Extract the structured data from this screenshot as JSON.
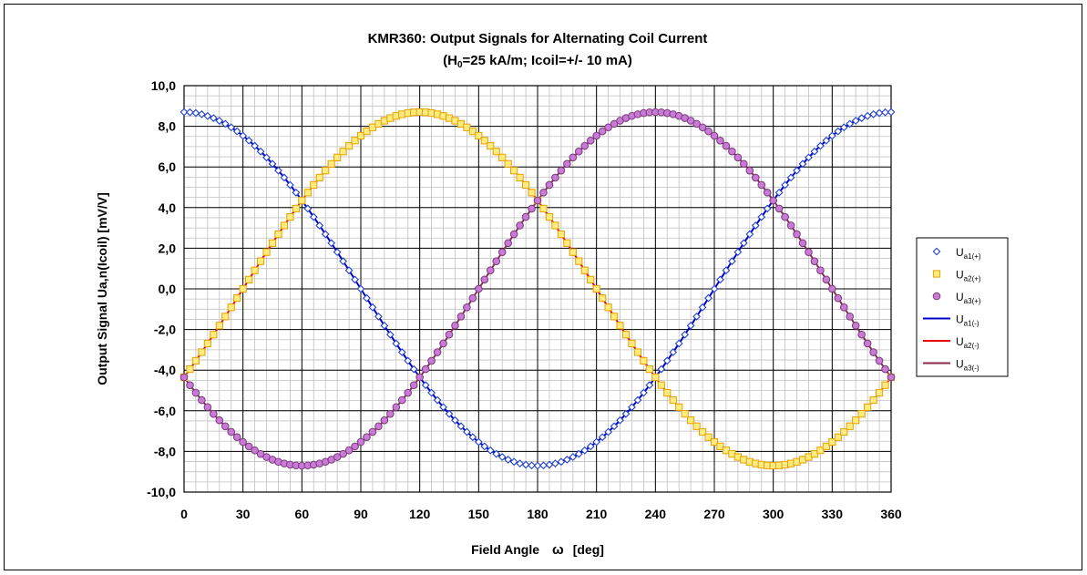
{
  "chart_data": {
    "type": "scatter",
    "title_line1": "KMR360: Output Signals for Alternating Coil Current",
    "title_line2_parts": [
      "(H",
      "0",
      "=25 kA/m; Icoil=+/- 10 mA)"
    ],
    "xlabel_parts": [
      "Field Angle",
      "ω",
      "[deg]"
    ],
    "ylabel": "Output Signal Ua,n(Icoil)  [mV/V]",
    "xlim": [
      0,
      360
    ],
    "ylim": [
      -10,
      10
    ],
    "x_ticks": [
      "0",
      "30",
      "60",
      "90",
      "120",
      "150",
      "180",
      "210",
      "240",
      "270",
      "300",
      "330",
      "360"
    ],
    "y_ticks": [
      "10,0",
      "8,0",
      "6,0",
      "4,0",
      "2,0",
      "0,0",
      "-2,0",
      "-4,0",
      "-6,0",
      "-8,0",
      "-10,0"
    ],
    "major_grid": true,
    "minor_grid": true,
    "legend_position": "right",
    "amplitude": 8.7,
    "x_step": 3,
    "series": [
      {
        "main": "U",
        "sub": "a1(+)",
        "marker": "diamond",
        "color": "#1f3fd0",
        "fill": "#ffffff",
        "phase_deg": 0
      },
      {
        "main": "U",
        "sub": "a2(+)",
        "marker": "square",
        "color": "#e8a000",
        "fill": "#ffec80",
        "phase_deg": 120
      },
      {
        "main": "U",
        "sub": "a3(+)",
        "marker": "circle",
        "color": "#7a3a7a",
        "fill": "#c87ad6",
        "phase_deg": 240
      },
      {
        "main": "U",
        "sub": "a1(-)",
        "marker": "line",
        "color": "#0000cc",
        "phase_deg": 0
      },
      {
        "main": "U",
        "sub": "a2(-)",
        "marker": "line",
        "color": "#ee0000",
        "phase_deg": 120
      },
      {
        "main": "U",
        "sub": "a3(-)",
        "marker": "line",
        "color": "#8b2a4a",
        "phase_deg": 240
      }
    ]
  }
}
